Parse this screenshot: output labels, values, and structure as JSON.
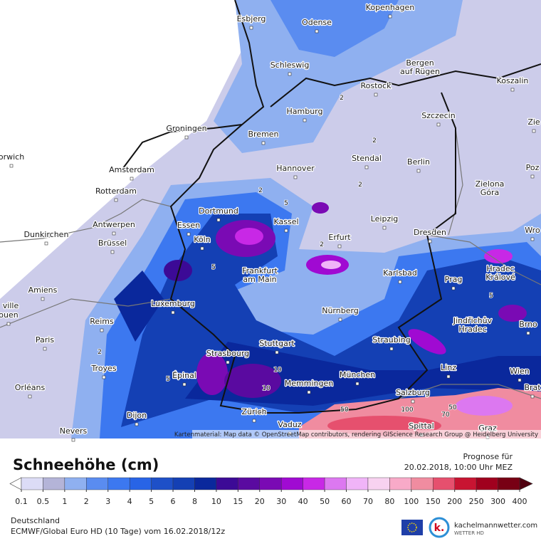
{
  "map": {
    "cities": [
      [
        "Esbjerg"
      ],
      [
        "Odense"
      ],
      [
        "Kopenhagen"
      ],
      [
        "Schleswig"
      ],
      [
        "Bergen",
        "auf Rügen"
      ],
      [
        "Rostock"
      ],
      [
        "Koszalin"
      ],
      [
        "Hamburg"
      ],
      [
        "Szczecin"
      ],
      [
        "Groningen"
      ],
      [
        "Bremen"
      ],
      [
        "Amsterdam"
      ],
      [
        "orwich"
      ],
      [
        "Stendal"
      ],
      [
        "Berlin"
      ],
      [
        "Hannover"
      ],
      [
        "Poz"
      ],
      [
        "Rotterdam"
      ],
      [
        "Zielona",
        "Góra"
      ],
      [
        "Dortmund"
      ],
      [
        "Essen"
      ],
      [
        "Kassel"
      ],
      [
        "Leipzig"
      ],
      [
        "Antwerpen"
      ],
      [
        "Dunkirchen"
      ],
      [
        "Dresden"
      ],
      [
        "Wro"
      ],
      [
        "Köln"
      ],
      [
        "Erfurt"
      ],
      [
        "Brüssel"
      ],
      [
        "Frankfurt",
        "am Main"
      ],
      [
        "Karlsbad"
      ],
      [
        "Hradec",
        "Králové"
      ],
      [
        "Prag"
      ],
      [
        "Amiens"
      ],
      [
        "ville"
      ],
      [
        "ouen"
      ],
      [
        "Luxemburg"
      ],
      [
        "Nürnberg"
      ],
      [
        "Jindřichův",
        "Hradec"
      ],
      [
        "Brno"
      ],
      [
        "Reims"
      ],
      [
        "Paris"
      ],
      [
        "Stuttgart"
      ],
      [
        "Straubing"
      ],
      [
        "Strasbourg"
      ],
      [
        "Troyes"
      ],
      [
        "Linz"
      ],
      [
        "Wien"
      ],
      [
        "Épinal"
      ],
      [
        "München"
      ],
      [
        "Memmingen"
      ],
      [
        "Orléans"
      ],
      [
        "Salzburg"
      ],
      [
        "Brat"
      ],
      [
        "Dijon"
      ],
      [
        "Zürich"
      ],
      [
        "Vaduz"
      ],
      [
        "Spittal"
      ],
      [
        "Graz"
      ],
      [
        "Nevers"
      ],
      [
        "Zie"
      ]
    ],
    "contour_labels": [
      "2",
      "2",
      "2",
      "5",
      "2",
      "2",
      "5",
      "5",
      "2",
      "10",
      "10",
      "5",
      "50",
      "70",
      "50",
      "100"
    ],
    "attribution": "Kartenmaterial: Map data © OpenStreetMap contributors, rendering GIScience Research Group @ Heidelberg University"
  },
  "legend": {
    "title": "Schneehöhe (cm)",
    "ticks": [
      0.1,
      0.5,
      1,
      2,
      3,
      4,
      5,
      6,
      8,
      10,
      15,
      20,
      30,
      40,
      50,
      60,
      70,
      80,
      100,
      150,
      200,
      250,
      300,
      400
    ],
    "colors": [
      "#dcdcf6",
      "#b4b4d8",
      "#8fb0f0",
      "#5a8cf0",
      "#3c78f0",
      "#2864e6",
      "#1e50c8",
      "#1440b4",
      "#0a289c",
      "#3c0a96",
      "#5a0aa0",
      "#7a0ab4",
      "#a00ad2",
      "#c828e6",
      "#dc78f0",
      "#f0b4f8",
      "#f8d2f0",
      "#f8aac8",
      "#f08ca0",
      "#e6506e",
      "#c81432",
      "#a0001e",
      "#780014"
    ],
    "under_color": "#ffffff",
    "over_color": "#500010"
  },
  "forecast": {
    "label": "Prognose für",
    "valid": "20.02.2018, 10:00 Uhr MEZ"
  },
  "footer": {
    "region": "Deutschland",
    "model": "ECMWF/Global Euro HD (10 Tage) vom 16.02.2018/12z",
    "brand": "kachelmannwetter.com",
    "brand_sub": "WETTER HD"
  }
}
